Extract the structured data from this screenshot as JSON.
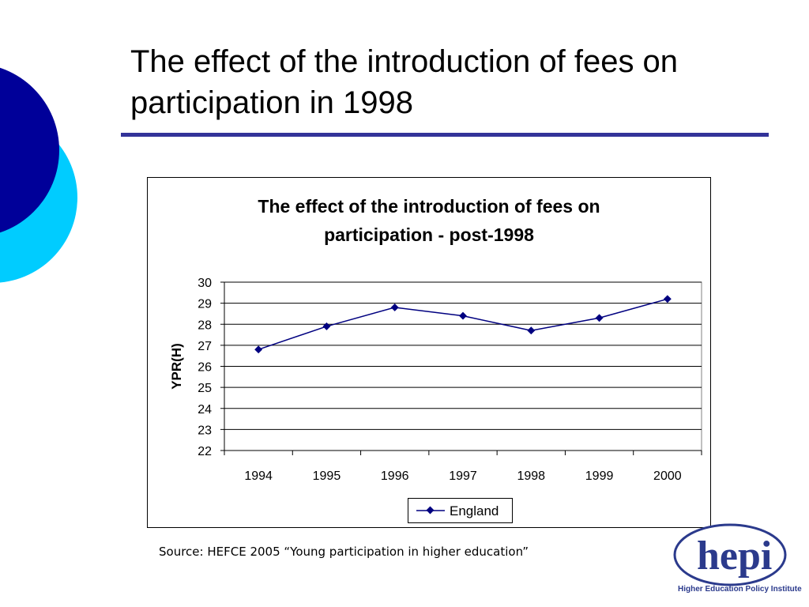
{
  "slide": {
    "title": "The effect of the introduction of fees on participation in 1998",
    "source": "Source: HEFCE 2005 “Young participation in higher education”",
    "logo_text": "hepi",
    "logo_caption": "Higher Education Policy Institute"
  },
  "colors": {
    "deco_dark": "#000099",
    "deco_light": "#00ccff",
    "rule": "#333399",
    "series": "#000080"
  },
  "chart_data": {
    "type": "line",
    "title_lines": [
      "The effect of the introduction of fees on",
      "participation - post-1998"
    ],
    "ylabel": "YPR(H)",
    "xlabel": "",
    "categories": [
      "1994",
      "1995",
      "1996",
      "1997",
      "1998",
      "1999",
      "2000"
    ],
    "series": [
      {
        "name": "England",
        "values": [
          26.8,
          27.9,
          28.8,
          28.4,
          27.7,
          28.3,
          29.2
        ]
      }
    ],
    "ylim": [
      22,
      30
    ],
    "yticks": [
      "30",
      "29",
      "28",
      "27",
      "26",
      "25",
      "24",
      "23",
      "22"
    ],
    "grid": true,
    "legend": "bottom-center"
  }
}
